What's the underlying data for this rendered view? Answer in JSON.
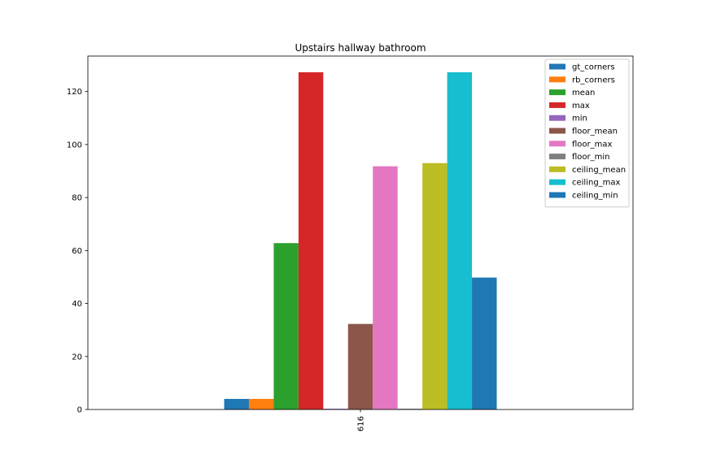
{
  "chart_data": {
    "type": "bar",
    "title": "Upstairs hallway bathroom",
    "xlabel": "",
    "ylabel": "",
    "categories": [
      "616"
    ],
    "ylim": [
      0,
      133.4
    ],
    "yticks": [
      0,
      20,
      40,
      60,
      80,
      100,
      120
    ],
    "grid": false,
    "legend_position": "top-right",
    "series": [
      {
        "name": "gt_corners",
        "values": [
          4
        ],
        "color": "#1f77b4"
      },
      {
        "name": "rb_corners",
        "values": [
          4
        ],
        "color": "#ff7f0e"
      },
      {
        "name": "mean",
        "values": [
          62.8
        ],
        "color": "#2ca02c"
      },
      {
        "name": "max",
        "values": [
          127.3
        ],
        "color": "#d62728"
      },
      {
        "name": "min",
        "values": [
          0.3
        ],
        "color": "#9467bd"
      },
      {
        "name": "floor_mean",
        "values": [
          32.3
        ],
        "color": "#8c564b"
      },
      {
        "name": "floor_max",
        "values": [
          91.8
        ],
        "color": "#e377c2"
      },
      {
        "name": "floor_min",
        "values": [
          0.3
        ],
        "color": "#7f7f7f"
      },
      {
        "name": "ceiling_mean",
        "values": [
          93.0
        ],
        "color": "#bcbd22"
      },
      {
        "name": "ceiling_max",
        "values": [
          127.3
        ],
        "color": "#17becf"
      },
      {
        "name": "ceiling_min",
        "values": [
          49.8
        ],
        "color": "#1f77b4"
      }
    ]
  }
}
